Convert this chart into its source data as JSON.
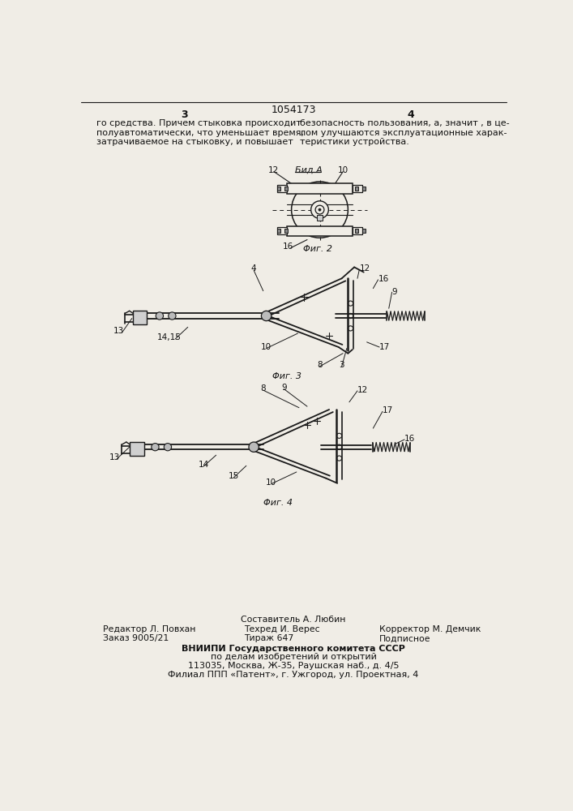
{
  "page_number_center": "1054173",
  "page_col_left": "3",
  "page_col_right": "4",
  "text_left": "го средства. Причем стыковка происходит\nполуавтоматически, что уменьшает время,\nзатрачиваемое на стыковку, и повышает",
  "text_right": "безопасность пользования, а, значит , в це-\nлом улучшаются эксплуатационные харак-\nтеристики устройства.",
  "fig2_label": "Φиг. 2",
  "fig2_view_label": "Бид A",
  "fig3_label": "Φиг. 3",
  "fig4_label": "Φиг. 4",
  "footer_line1": "Составитель А. Любин",
  "footer_line2_left": "Редактор Л. Повхан",
  "footer_line2_mid": "Техред И. Верес",
  "footer_line2_right": "Корректор М. Демчик",
  "footer_line3_left": "Заказ 9005/21",
  "footer_line3_mid": "Тираж 647",
  "footer_line3_right": "Подписное",
  "footer_org1": "ВНИИПИ Государственного комитета СССР",
  "footer_org2": "по делам изобретений и открытий",
  "footer_org3": "113035, Москва, Ж-35, Раушская наб., д. 4/5",
  "footer_org4": "Филиал ППП «Патент», г. Ужгород, ул. Проектная, 4",
  "bg_color": "#f0ede6",
  "line_color": "#1a1a1a",
  "text_color": "#111111"
}
